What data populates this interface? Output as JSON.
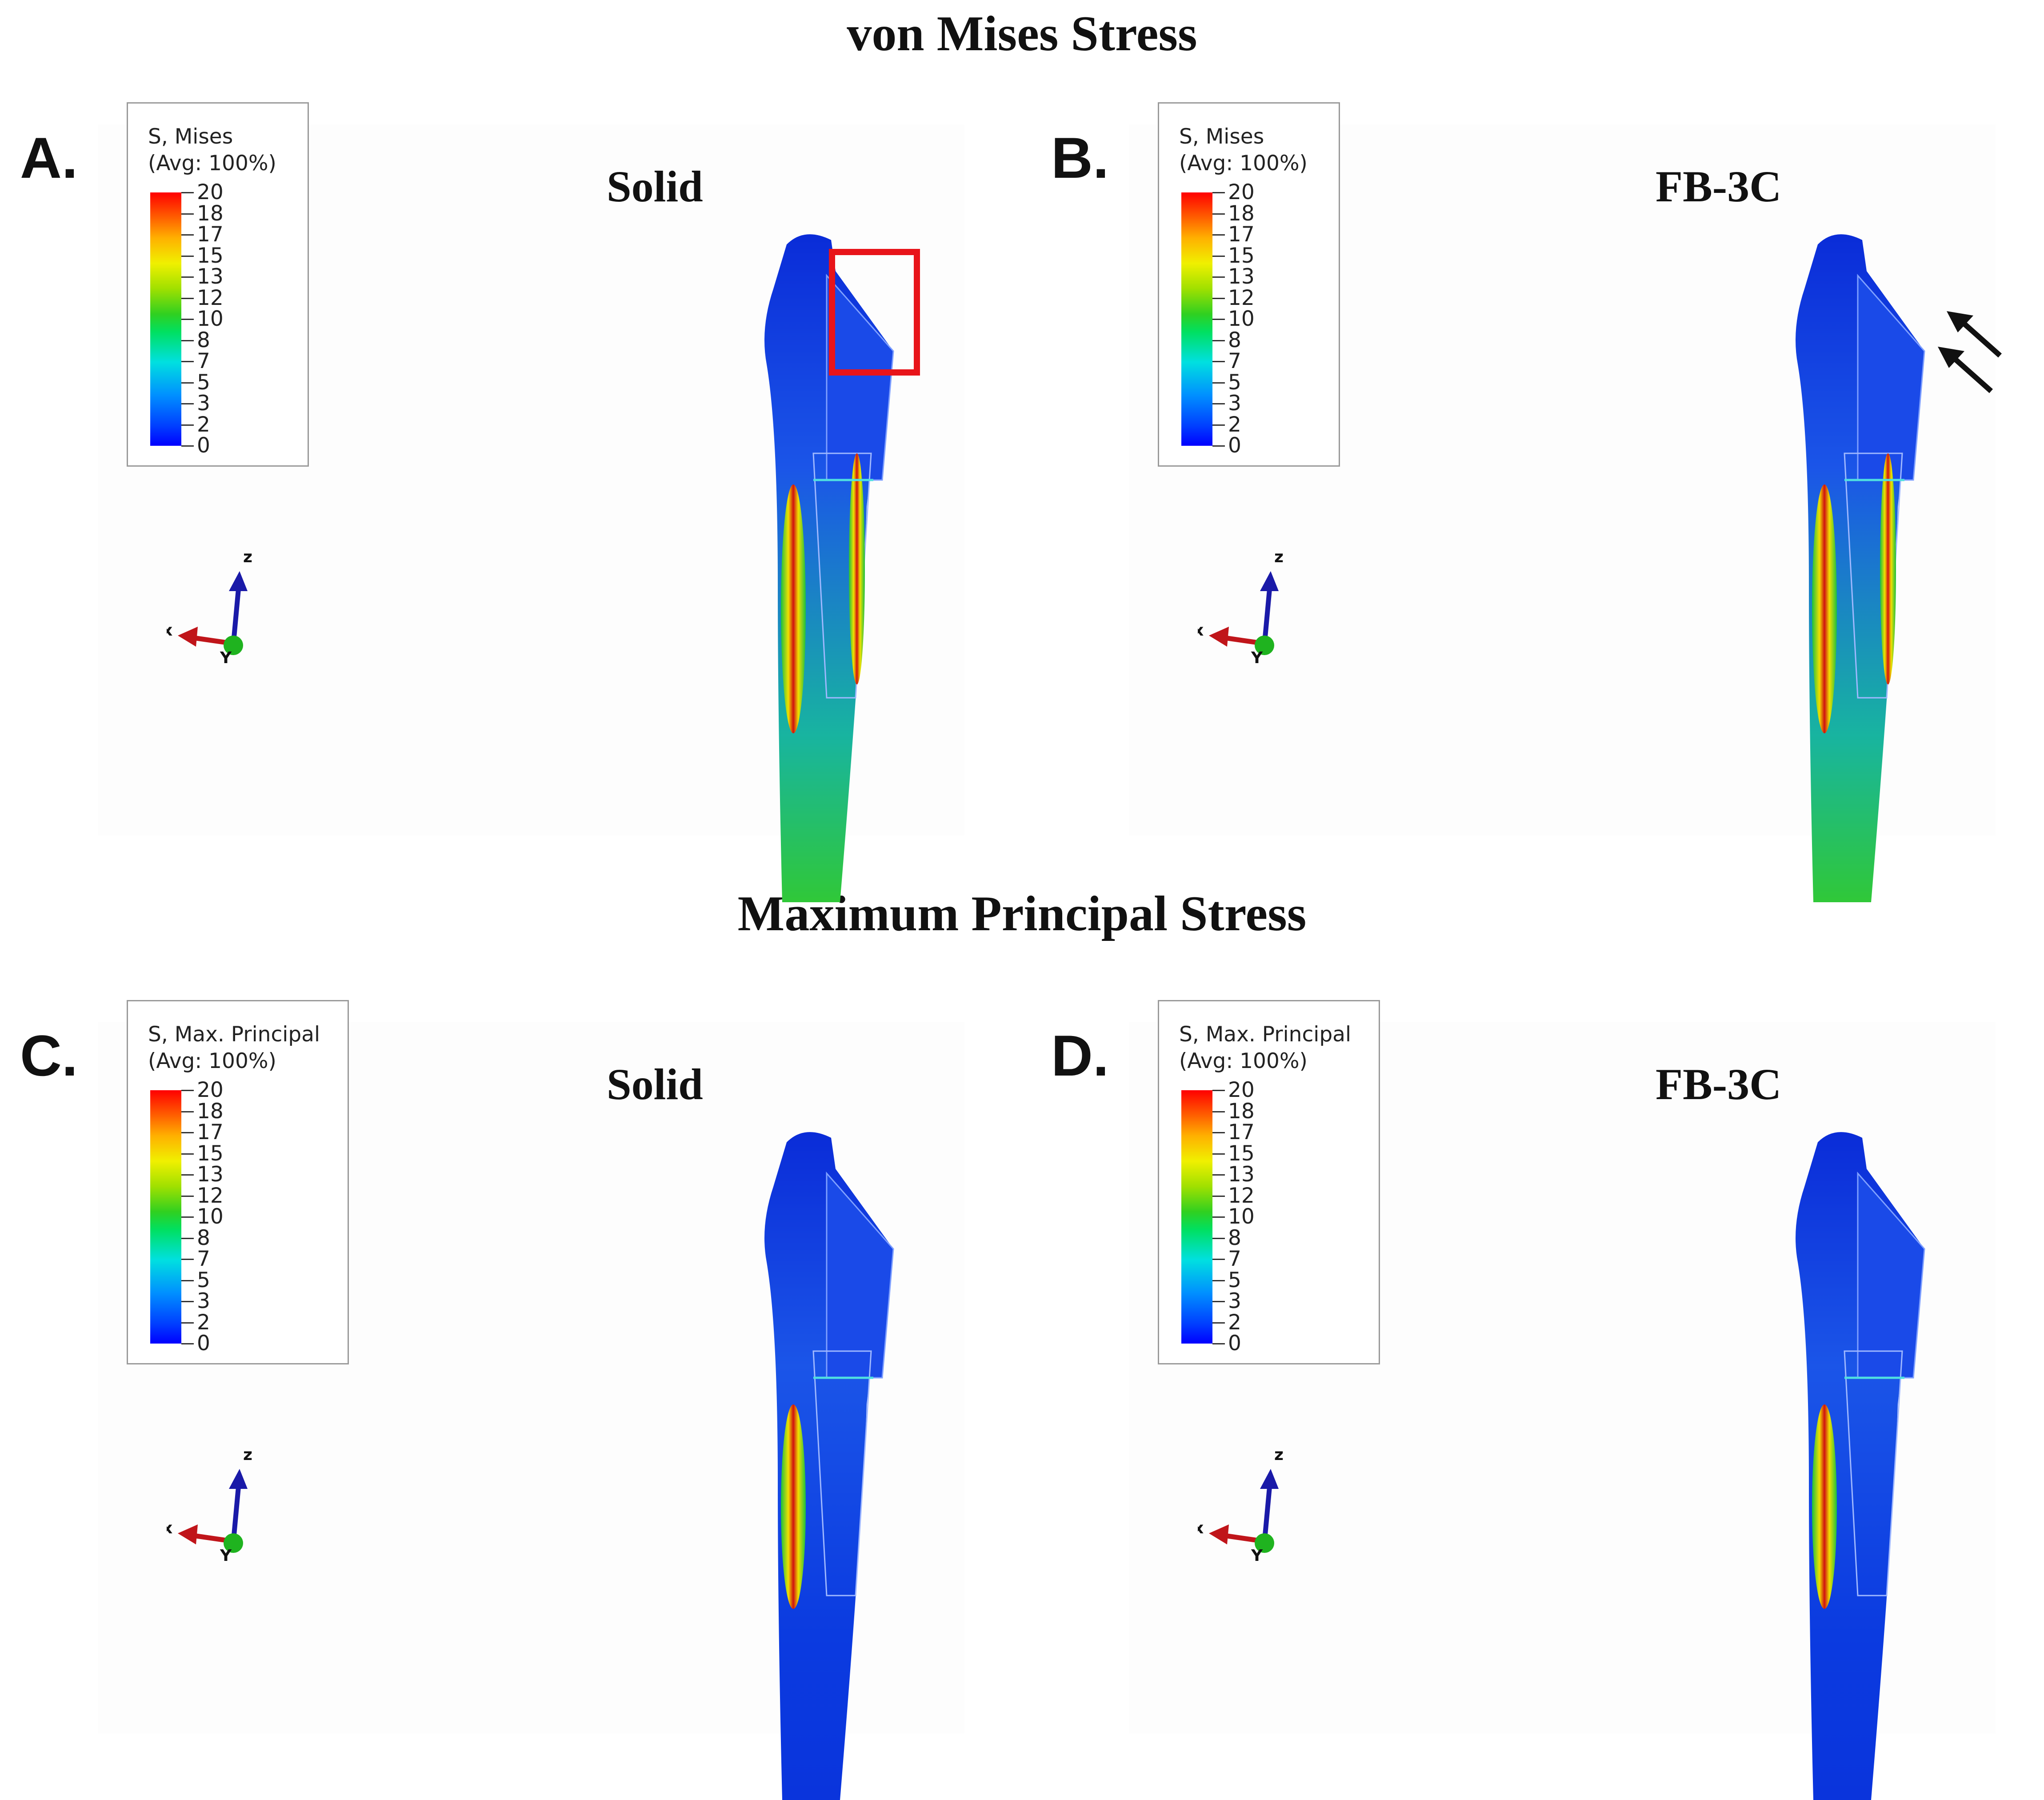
{
  "titles": {
    "top": "von Mises Stress",
    "bottom": "Maximum Principal Stress"
  },
  "legend_ticks": [
    "20",
    "18",
    "17",
    "15",
    "13",
    "12",
    "10",
    "8",
    "7",
    "5",
    "3",
    "2",
    "0"
  ],
  "colors": {
    "highlight_box": "#e8141a",
    "arrow": "#111111",
    "x_axis": "#c0151a",
    "y_axis": "#1fb31f",
    "z_axis": "#1a1aa8"
  },
  "icons": [
    "red-highlight-box",
    "black-arrows",
    "axis-triad"
  ],
  "panels": [
    {
      "letter": "A.",
      "legend_line1": "S, Mises",
      "legend_line2": "(Avg: 100%)",
      "model": "Solid",
      "axis_x": "x",
      "axis_y": "Y",
      "axis_z": "z"
    },
    {
      "letter": "B.",
      "legend_line1": "S, Mises",
      "legend_line2": "(Avg: 100%)",
      "model": "FB-3C",
      "axis_x": "x",
      "axis_y": "Y",
      "axis_z": "z"
    },
    {
      "letter": "C.",
      "legend_line1": "S, Max. Principal",
      "legend_line2": "(Avg: 100%)",
      "model": "Solid",
      "axis_x": "x",
      "axis_y": "Y",
      "axis_z": "z"
    },
    {
      "letter": "D.",
      "legend_line1": "S, Max. Principal",
      "legend_line2": "(Avg: 100%)",
      "model": "FB-3C",
      "axis_x": "x",
      "axis_y": "Y",
      "axis_z": "z"
    }
  ]
}
